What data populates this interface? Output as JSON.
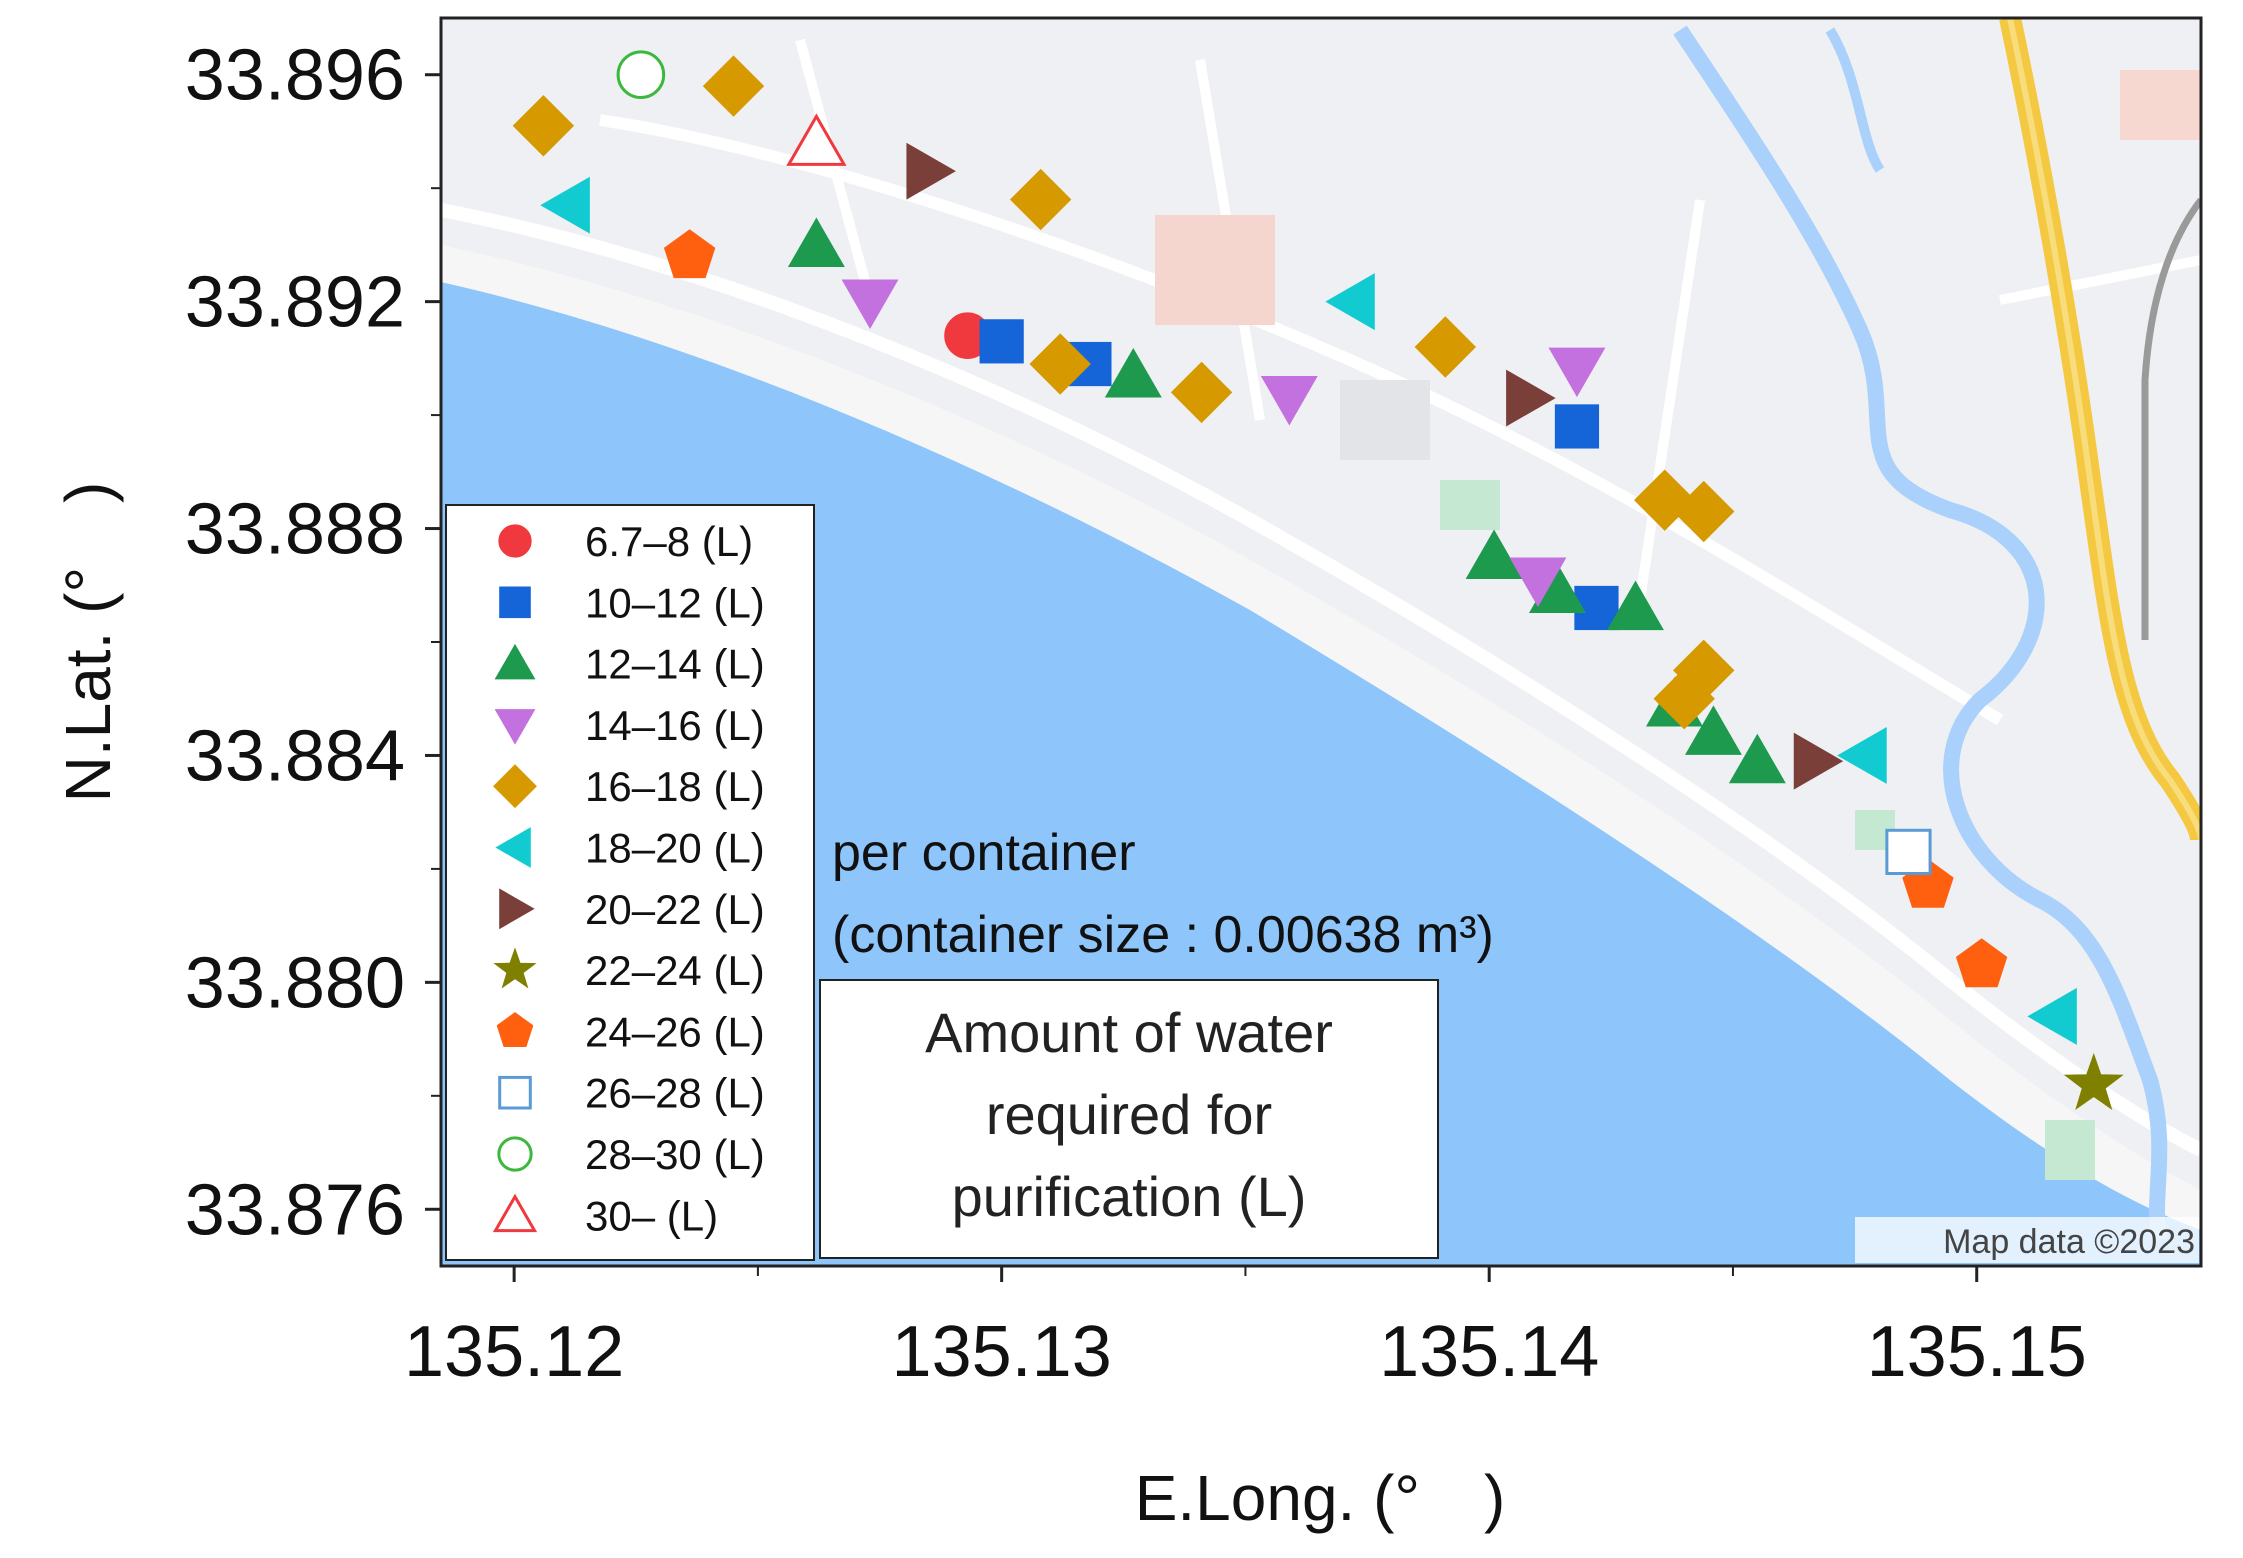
{
  "chart_data": {
    "type": "scatter",
    "xlabel": "E.Long. (°　)",
    "ylabel": "N.Lat. (°　)",
    "xlim": [
      135.1185,
      135.1546
    ],
    "ylim": [
      33.875,
      33.897
    ],
    "x_ticks": [
      135.12,
      135.13,
      135.14,
      135.15
    ],
    "x_tick_labels": [
      "135.12",
      "135.13",
      "135.14",
      "135.15"
    ],
    "y_ticks": [
      33.876,
      33.88,
      33.884,
      33.888,
      33.892,
      33.896
    ],
    "y_tick_labels": [
      "33.876",
      "33.880",
      "33.884",
      "33.888",
      "33.892",
      "33.896"
    ],
    "legend_position": "left",
    "annotation_lines": [
      "per container",
      "(container size : 0.00638 m³)"
    ],
    "title_lines": [
      "Amount of water",
      "required for",
      "purification (L)"
    ],
    "map_attribution": "Map data ©2023",
    "series": [
      {
        "name": "6.7–8 (L)",
        "marker": "circle",
        "color": "#f0393e",
        "filled": true,
        "points": [
          [
            135.1293,
            33.8914
          ]
        ]
      },
      {
        "name": "10–12 (L)",
        "marker": "square",
        "color": "#1565d8",
        "filled": true,
        "points": [
          [
            135.13,
            33.8913
          ],
          [
            135.1318,
            33.8909
          ],
          [
            135.1418,
            33.8898
          ],
          [
            135.1422,
            33.8866
          ]
        ]
      },
      {
        "name": "12–14 (L)",
        "marker": "triangle-up",
        "color": "#1e9a4e",
        "filled": true,
        "points": [
          [
            135.1262,
            33.893
          ],
          [
            135.1327,
            33.8907
          ],
          [
            135.1401,
            33.8875
          ],
          [
            135.1414,
            33.8869
          ],
          [
            135.143,
            33.8866
          ],
          [
            135.1438,
            33.8849
          ],
          [
            135.1446,
            33.8844
          ],
          [
            135.1455,
            33.8839
          ]
        ]
      },
      {
        "name": "14–16 (L)",
        "marker": "triangle-down",
        "color": "#c471e0",
        "filled": true,
        "points": [
          [
            135.1273,
            33.892
          ],
          [
            135.1359,
            33.8903
          ],
          [
            135.1418,
            33.8908
          ],
          [
            135.141,
            33.8871
          ]
        ]
      },
      {
        "name": "16–18 (L)",
        "marker": "diamond",
        "color": "#d69a00",
        "filled": true,
        "points": [
          [
            135.1206,
            33.8951
          ],
          [
            135.1245,
            33.8958
          ],
          [
            135.1308,
            33.8938
          ],
          [
            135.1312,
            33.8909
          ],
          [
            135.1341,
            33.8904
          ],
          [
            135.1391,
            33.8912
          ],
          [
            135.1436,
            33.8885
          ],
          [
            135.1444,
            33.8883
          ],
          [
            135.1444,
            33.8855
          ],
          [
            135.144,
            33.885
          ]
        ]
      },
      {
        "name": "18–20 (L)",
        "marker": "triangle-left",
        "color": "#12cbd1",
        "filled": true,
        "points": [
          [
            135.1211,
            33.8937
          ],
          [
            135.1372,
            33.892
          ],
          [
            135.1477,
            33.884
          ],
          [
            135.1516,
            33.8794
          ]
        ]
      },
      {
        "name": "20–22 (L)",
        "marker": "triangle-right",
        "color": "#7b3f3a",
        "filled": true,
        "points": [
          [
            135.1285,
            33.8943
          ],
          [
            135.1408,
            33.8903
          ],
          [
            135.1467,
            33.8839
          ]
        ]
      },
      {
        "name": "22–24 (L)",
        "marker": "star",
        "color": "#808000",
        "filled": true,
        "points": [
          [
            135.1524,
            33.8782
          ]
        ]
      },
      {
        "name": "24–26 (L)",
        "marker": "pentagon",
        "color": "#ff6010",
        "filled": true,
        "points": [
          [
            135.1236,
            33.8928
          ],
          [
            135.149,
            33.8817
          ],
          [
            135.1501,
            33.8803
          ]
        ]
      },
      {
        "name": "26–28 (L)",
        "marker": "square",
        "color": "#5b9bd5",
        "filled": false,
        "points": [
          [
            135.1486,
            33.8823
          ]
        ]
      },
      {
        "name": "28–30 (L)",
        "marker": "circle",
        "color": "#3cb83c",
        "filled": false,
        "points": [
          [
            135.1226,
            33.896
          ]
        ]
      },
      {
        "name": "30– (L)",
        "marker": "triangle-up",
        "color": "#f0393e",
        "filled": false,
        "points": [
          [
            135.1262,
            33.8948
          ]
        ]
      }
    ]
  }
}
